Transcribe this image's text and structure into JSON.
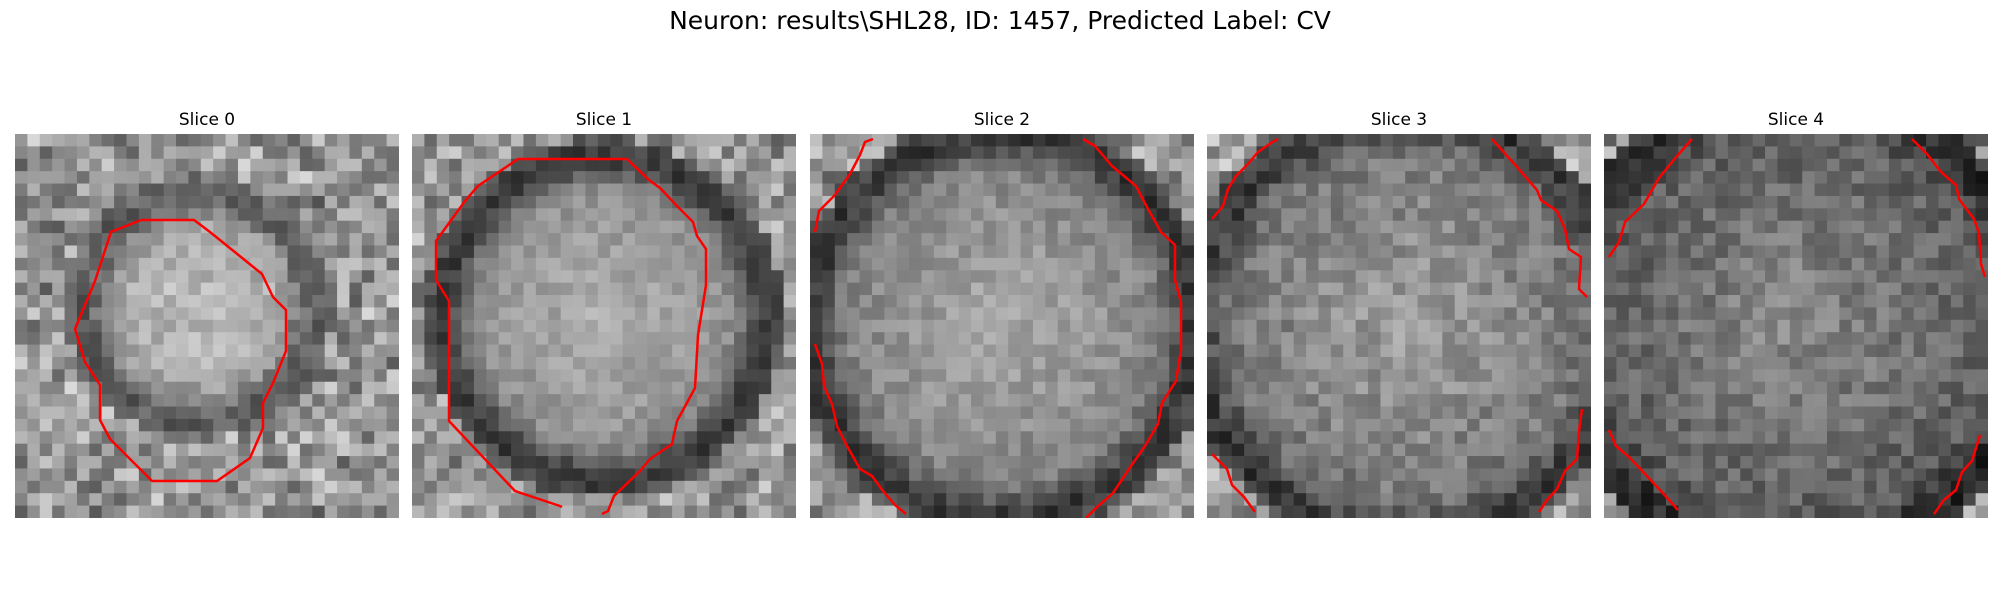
{
  "figure": {
    "title": "Neuron: results\\SHL28, ID: 1457, Predicted Label: CV"
  },
  "panels": [
    {
      "title": "Slice 0"
    },
    {
      "title": "Slice 1"
    },
    {
      "title": "Slice 2"
    },
    {
      "title": "Slice 3"
    },
    {
      "title": "Slice 4"
    }
  ],
  "colors": {
    "contour": "#ff0000"
  }
}
